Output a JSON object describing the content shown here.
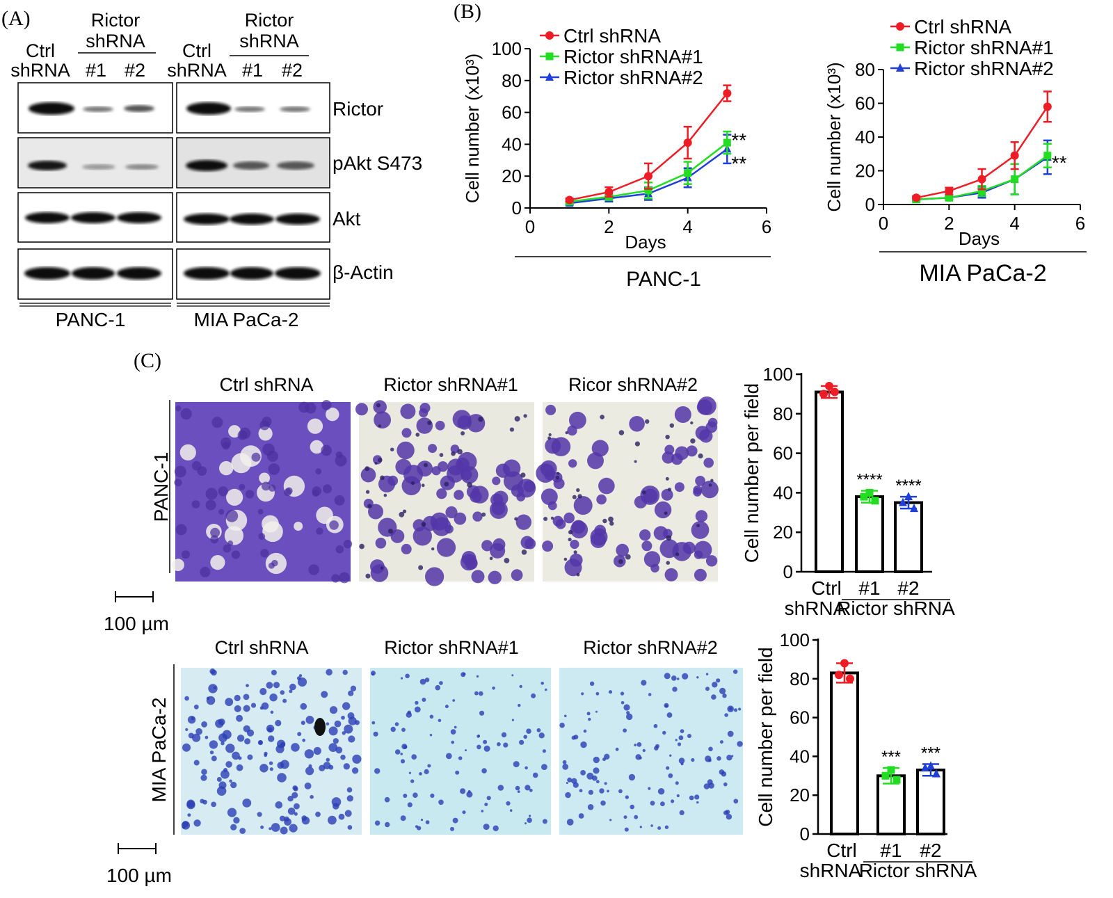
{
  "panel_labels": {
    "a": "(A)",
    "b": "(B)",
    "c": "(C)"
  },
  "western_blot": {
    "lane_headers": {
      "ctrl_line1": "Ctrl",
      "ctrl_line2": "shRNA",
      "rictor_line1": "Rictor",
      "rictor_line2": "shRNA",
      "lane1": "#1",
      "lane2": "#2"
    },
    "proteins": [
      "Rictor",
      "pAkt S473",
      "Akt",
      "β-Actin"
    ],
    "cell_lines": [
      "PANC-1",
      "MIA PaCa-2"
    ]
  },
  "colors": {
    "ctrl": "#ee1c24",
    "rictor1": "#22dd22",
    "rictor2": "#1f3fd9",
    "crystal_violet": "#5b3fb0",
    "blue_stain": "#2440b8"
  },
  "chart_data": [
    {
      "type": "line",
      "cell_line": "PANC-1",
      "xlabel": "Days",
      "ylabel": "Cell number (x10³)",
      "xlim": [
        0,
        6
      ],
      "ylim": [
        0,
        100
      ],
      "xticks": [
        "0",
        "2",
        "4",
        "6"
      ],
      "yticks": [
        "0",
        "20",
        "40",
        "60",
        "80",
        "100"
      ],
      "x": [
        1,
        2,
        3,
        4,
        5
      ],
      "series": [
        {
          "name": "Ctrl shRNA",
          "values": [
            5,
            10,
            20,
            41,
            72
          ],
          "err": [
            1,
            3,
            8,
            10,
            5
          ]
        },
        {
          "name": "Rictor shRNA#1",
          "values": [
            4,
            7,
            11,
            22,
            41
          ],
          "err": [
            1,
            2,
            5,
            7,
            7
          ]
        },
        {
          "name": "Rictor shRNA#2",
          "values": [
            3,
            6,
            9,
            19,
            37
          ],
          "err": [
            1,
            2,
            4,
            6,
            9
          ]
        }
      ],
      "annotations": [
        "**",
        "**"
      ]
    },
    {
      "type": "line",
      "cell_line": "MIA PaCa-2",
      "xlabel": "Days",
      "ylabel": "Cell number (x10³)",
      "xlim": [
        0,
        6
      ],
      "ylim": [
        0,
        80
      ],
      "xticks": [
        "0",
        "2",
        "4",
        "6"
      ],
      "yticks": [
        "0",
        "20",
        "40",
        "60",
        "80"
      ],
      "x": [
        1,
        2,
        3,
        4,
        5
      ],
      "series": [
        {
          "name": "Ctrl shRNA",
          "values": [
            4,
            8,
            15,
            29,
            58
          ],
          "err": [
            1,
            2,
            6,
            8,
            9
          ]
        },
        {
          "name": "Rictor shRNA#1",
          "values": [
            3,
            4,
            8,
            15,
            29
          ],
          "err": [
            1,
            1,
            3,
            9,
            7
          ]
        },
        {
          "name": "Rictor shRNA#2",
          "values": [
            3,
            4,
            7,
            15,
            28
          ],
          "err": [
            1,
            1,
            3,
            9,
            10
          ]
        }
      ],
      "annotations": [
        "**"
      ]
    },
    {
      "type": "bar",
      "cell_line": "PANC-1",
      "ylabel": "Cell number per field",
      "ylim": [
        0,
        100
      ],
      "yticks": [
        "0",
        "20",
        "40",
        "60",
        "80",
        "100"
      ],
      "categories": [
        "Ctrl shRNA",
        "#1",
        "#2"
      ],
      "values": [
        91,
        38,
        35
      ],
      "err": [
        3,
        3,
        3
      ],
      "points": [
        [
          94,
          90,
          91
        ],
        [
          40,
          38,
          36
        ],
        [
          38,
          35,
          32
        ]
      ],
      "significance": [
        "",
        "****",
        "****"
      ],
      "group_label": "Rictor shRNA"
    },
    {
      "type": "bar",
      "cell_line": "MIA PaCa-2",
      "ylabel": "Cell number per field",
      "ylim": [
        0,
        100
      ],
      "yticks": [
        "0",
        "20",
        "40",
        "60",
        "80",
        "100"
      ],
      "categories": [
        "Ctrl shRNA",
        "#1",
        "#2"
      ],
      "values": [
        83,
        30,
        33
      ],
      "err": [
        5,
        4,
        3
      ],
      "points": [
        [
          88,
          82,
          80
        ],
        [
          33,
          30,
          28
        ],
        [
          35,
          34,
          31
        ]
      ],
      "significance": [
        "",
        "***",
        "***"
      ],
      "group_label": "Rictor shRNA"
    }
  ],
  "micrographs": {
    "panc1_titles": [
      "Ctrl shRNA",
      "Rictor shRNA#1",
      "Ricor shRNA#2"
    ],
    "mia_titles": [
      "Ctrl shRNA",
      "Rictor shRNA#1",
      "Rictor shRNA#2"
    ],
    "row_labels": [
      "PANC-1",
      "MIA PaCa-2"
    ],
    "scale_bar": "100 µm"
  }
}
